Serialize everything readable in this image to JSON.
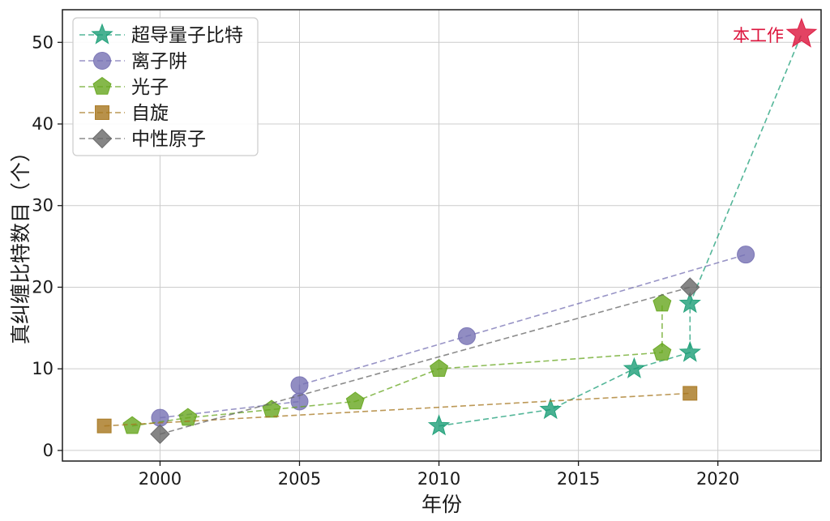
{
  "chart_data": {
    "type": "scatter",
    "title": "",
    "xlabel": "年份",
    "ylabel": "真纠缠比特数目（个）",
    "xlim": [
      1996.5,
      2023.7
    ],
    "ylim": [
      -1.3,
      54
    ],
    "xticks": [
      2000,
      2005,
      2010,
      2015,
      2020
    ],
    "yticks": [
      0,
      10,
      20,
      30,
      40,
      50
    ],
    "grid": true,
    "grid_color": "#cccccc",
    "spine_color": "#1a1a1a",
    "line_style": "dashed",
    "legend_position": "upper-left",
    "series": [
      {
        "name": "超导量子比特",
        "marker": "star",
        "color": "#1b9e77",
        "points": [
          [
            2010,
            3
          ],
          [
            2014,
            5
          ],
          [
            2017,
            10
          ],
          [
            2019,
            12
          ],
          [
            2019,
            18
          ]
        ],
        "connects_to_highlight": true
      },
      {
        "name": "离子阱",
        "marker": "circle",
        "color": "#7570b3",
        "points": [
          [
            2000,
            4
          ],
          [
            2005,
            6
          ],
          [
            2005,
            8
          ],
          [
            2011,
            14
          ],
          [
            2021,
            24
          ]
        ],
        "connects_to_highlight": false
      },
      {
        "name": "光子",
        "marker": "pentagon",
        "color": "#66a61e",
        "points": [
          [
            1999,
            3
          ],
          [
            2001,
            4
          ],
          [
            2004,
            5
          ],
          [
            2007,
            6
          ],
          [
            2010,
            10
          ],
          [
            2018,
            12
          ],
          [
            2018,
            18
          ]
        ],
        "connects_to_highlight": false
      },
      {
        "name": "自旋",
        "marker": "square",
        "color": "#a6761d",
        "points": [
          [
            1998,
            3
          ],
          [
            2019,
            7
          ]
        ],
        "connects_to_highlight": false
      },
      {
        "name": "中性原子",
        "marker": "diamond",
        "color": "#666666",
        "points": [
          [
            2000,
            2
          ],
          [
            2019,
            20
          ]
        ],
        "connects_to_highlight": false
      }
    ],
    "highlight": {
      "label": "本工作",
      "marker": "star",
      "color": "#dc143c",
      "point": [
        2023,
        51
      ]
    }
  }
}
